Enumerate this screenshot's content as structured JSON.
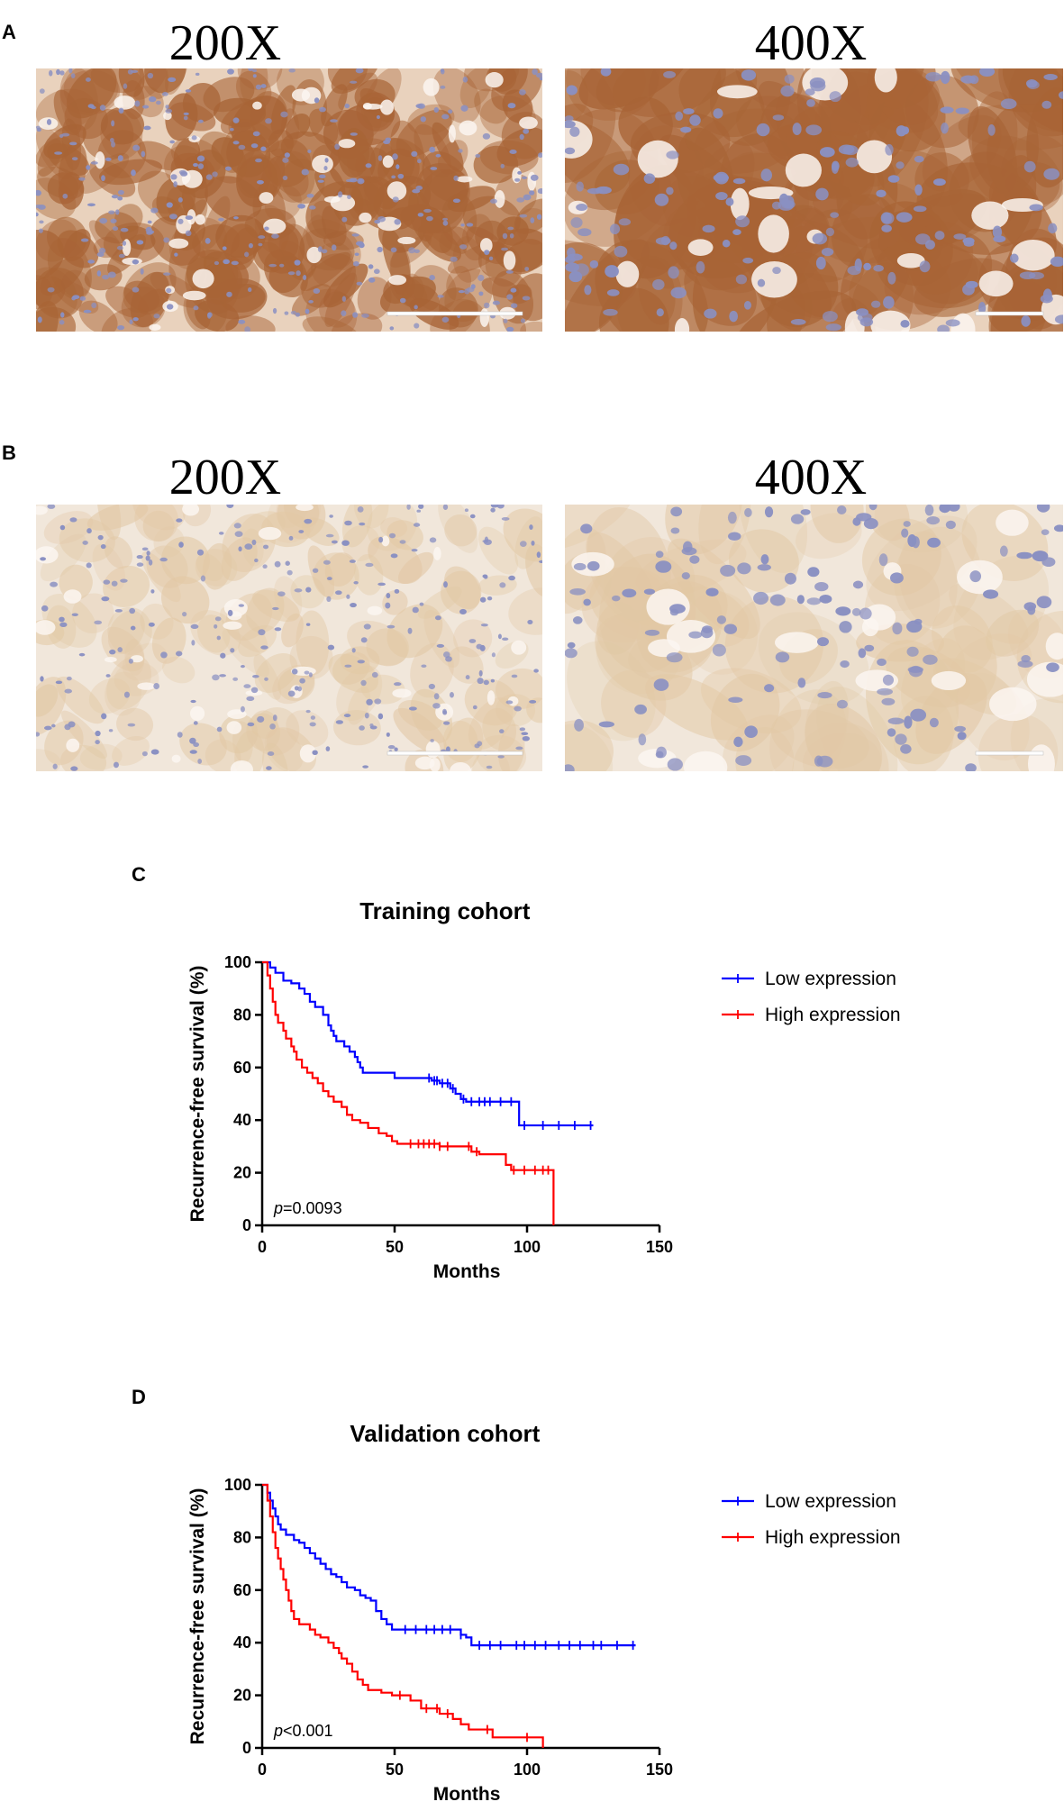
{
  "panels": [
    {
      "letter": "A",
      "images": [
        {
          "magnification": "200X",
          "stain": "strong"
        },
        {
          "magnification": "400X",
          "stain": "strong"
        }
      ]
    },
    {
      "letter": "B",
      "images": [
        {
          "magnification": "200X",
          "stain": "weak"
        },
        {
          "magnification": "400X",
          "stain": "weak"
        }
      ]
    }
  ],
  "colors": {
    "low": "#0000ff",
    "high": "#ff0000",
    "strong_bg": "#e9d2bd",
    "strong_cell": "#a86436",
    "weak_bg": "#f1e7db",
    "weak_cell": "#e2c8a5",
    "nuclei": "#8a90c2"
  },
  "chart_data": [
    {
      "letter": "C",
      "type": "line",
      "title": "Training cohort",
      "xlabel": "Months",
      "ylabel": "Recurrence-free survival (%)",
      "xlim": [
        0,
        150
      ],
      "ylim": [
        0,
        100
      ],
      "xticks": [
        "0",
        "50",
        "100",
        "150"
      ],
      "yticks": [
        "0",
        "20",
        "40",
        "60",
        "80",
        "100"
      ],
      "p_prefix": "p",
      "p_value": "=0.0093",
      "legend_position": "top-right",
      "series": [
        {
          "name": "Low expression",
          "color": "#0000ff",
          "steps": [
            [
              0,
              100
            ],
            [
              3,
              98
            ],
            [
              5,
              96
            ],
            [
              8,
              93
            ],
            [
              11,
              92
            ],
            [
              14,
              90
            ],
            [
              16,
              88
            ],
            [
              18,
              85
            ],
            [
              20,
              83
            ],
            [
              23,
              80
            ],
            [
              25,
              76
            ],
            [
              26,
              74
            ],
            [
              27,
              72
            ],
            [
              28,
              70
            ],
            [
              31,
              68
            ],
            [
              33,
              66
            ],
            [
              35,
              64
            ],
            [
              36,
              62
            ],
            [
              37,
              60
            ],
            [
              38,
              58
            ],
            [
              50,
              56
            ],
            [
              58,
              56
            ],
            [
              64,
              55
            ],
            [
              67,
              54
            ],
            [
              71,
              52
            ],
            [
              73,
              50
            ],
            [
              75,
              48
            ],
            [
              77,
              47
            ],
            [
              97,
              47
            ],
            [
              97,
              38
            ],
            [
              125,
              38
            ]
          ],
          "censored": [
            63,
            65,
            66,
            68,
            70,
            72,
            76,
            79,
            82,
            84,
            86,
            90,
            94,
            99,
            106,
            112,
            118,
            124
          ]
        },
        {
          "name": "High expression",
          "color": "#ff0000",
          "steps": [
            [
              0,
              100
            ],
            [
              2,
              95
            ],
            [
              3,
              90
            ],
            [
              4,
              85
            ],
            [
              5,
              80
            ],
            [
              6,
              77
            ],
            [
              8,
              74
            ],
            [
              9,
              71
            ],
            [
              11,
              68
            ],
            [
              12,
              66
            ],
            [
              13,
              63
            ],
            [
              15,
              60
            ],
            [
              17,
              58
            ],
            [
              19,
              56
            ],
            [
              21,
              54
            ],
            [
              23,
              51
            ],
            [
              25,
              49
            ],
            [
              27,
              47
            ],
            [
              30,
              45
            ],
            [
              32,
              42
            ],
            [
              34,
              40
            ],
            [
              37,
              39
            ],
            [
              40,
              37
            ],
            [
              44,
              35
            ],
            [
              47,
              34
            ],
            [
              49,
              32
            ],
            [
              51,
              31
            ],
            [
              60,
              31
            ],
            [
              67,
              30
            ],
            [
              79,
              28
            ],
            [
              82,
              27
            ],
            [
              92,
              23
            ],
            [
              94,
              21
            ],
            [
              110,
              21
            ],
            [
              110,
              0
            ]
          ],
          "censored": [
            56,
            59,
            61,
            63,
            65,
            67,
            70,
            78,
            81,
            95,
            99,
            103,
            106,
            108
          ]
        }
      ]
    },
    {
      "letter": "D",
      "type": "line",
      "title": "Validation cohort",
      "xlabel": "Months",
      "ylabel": "Recurrence-free survival (%)",
      "xlim": [
        0,
        150
      ],
      "ylim": [
        0,
        100
      ],
      "xticks": [
        "0",
        "50",
        "100",
        "150"
      ],
      "yticks": [
        "0",
        "20",
        "40",
        "60",
        "80",
        "100"
      ],
      "p_prefix": "p",
      "p_value": "<0.001",
      "legend_position": "top-right",
      "series": [
        {
          "name": "Low expression",
          "color": "#0000ff",
          "steps": [
            [
              0,
              100
            ],
            [
              2,
              97
            ],
            [
              3,
              94
            ],
            [
              4,
              91
            ],
            [
              5,
              88
            ],
            [
              6,
              85
            ],
            [
              7,
              83
            ],
            [
              9,
              81
            ],
            [
              12,
              79
            ],
            [
              14,
              78
            ],
            [
              16,
              76
            ],
            [
              18,
              74
            ],
            [
              20,
              72
            ],
            [
              22,
              70
            ],
            [
              24,
              68
            ],
            [
              26,
              66
            ],
            [
              28,
              65
            ],
            [
              30,
              63
            ],
            [
              32,
              61
            ],
            [
              35,
              60
            ],
            [
              37,
              58
            ],
            [
              39,
              57
            ],
            [
              41,
              56
            ],
            [
              43,
              52
            ],
            [
              45,
              49
            ],
            [
              47,
              47
            ],
            [
              49,
              45
            ],
            [
              73,
              45
            ],
            [
              75,
              43
            ],
            [
              77,
              42
            ],
            [
              79,
              39
            ],
            [
              141,
              39
            ]
          ],
          "censored": [
            54,
            58,
            62,
            65,
            68,
            71,
            75,
            82,
            86,
            90,
            96,
            99,
            103,
            107,
            112,
            116,
            120,
            125,
            128,
            134,
            140
          ]
        },
        {
          "name": "High expression",
          "color": "#ff0000",
          "steps": [
            [
              0,
              100
            ],
            [
              2,
              94
            ],
            [
              3,
              88
            ],
            [
              4,
              82
            ],
            [
              5,
              76
            ],
            [
              6,
              72
            ],
            [
              7,
              68
            ],
            [
              8,
              64
            ],
            [
              9,
              60
            ],
            [
              10,
              56
            ],
            [
              11,
              52
            ],
            [
              12,
              49
            ],
            [
              14,
              47
            ],
            [
              18,
              45
            ],
            [
              20,
              43
            ],
            [
              22,
              42
            ],
            [
              25,
              40
            ],
            [
              27,
              38
            ],
            [
              29,
              36
            ],
            [
              30,
              34
            ],
            [
              32,
              32
            ],
            [
              34,
              29
            ],
            [
              36,
              26
            ],
            [
              38,
              24
            ],
            [
              40,
              22
            ],
            [
              45,
              21
            ],
            [
              49,
              20
            ],
            [
              56,
              18
            ],
            [
              60,
              15
            ],
            [
              67,
              13
            ],
            [
              72,
              11
            ],
            [
              75,
              9
            ],
            [
              78,
              7
            ],
            [
              87,
              4
            ],
            [
              106,
              4
            ],
            [
              106,
              0
            ]
          ],
          "censored": [
            52,
            62,
            66,
            70,
            85,
            100
          ]
        }
      ]
    }
  ]
}
